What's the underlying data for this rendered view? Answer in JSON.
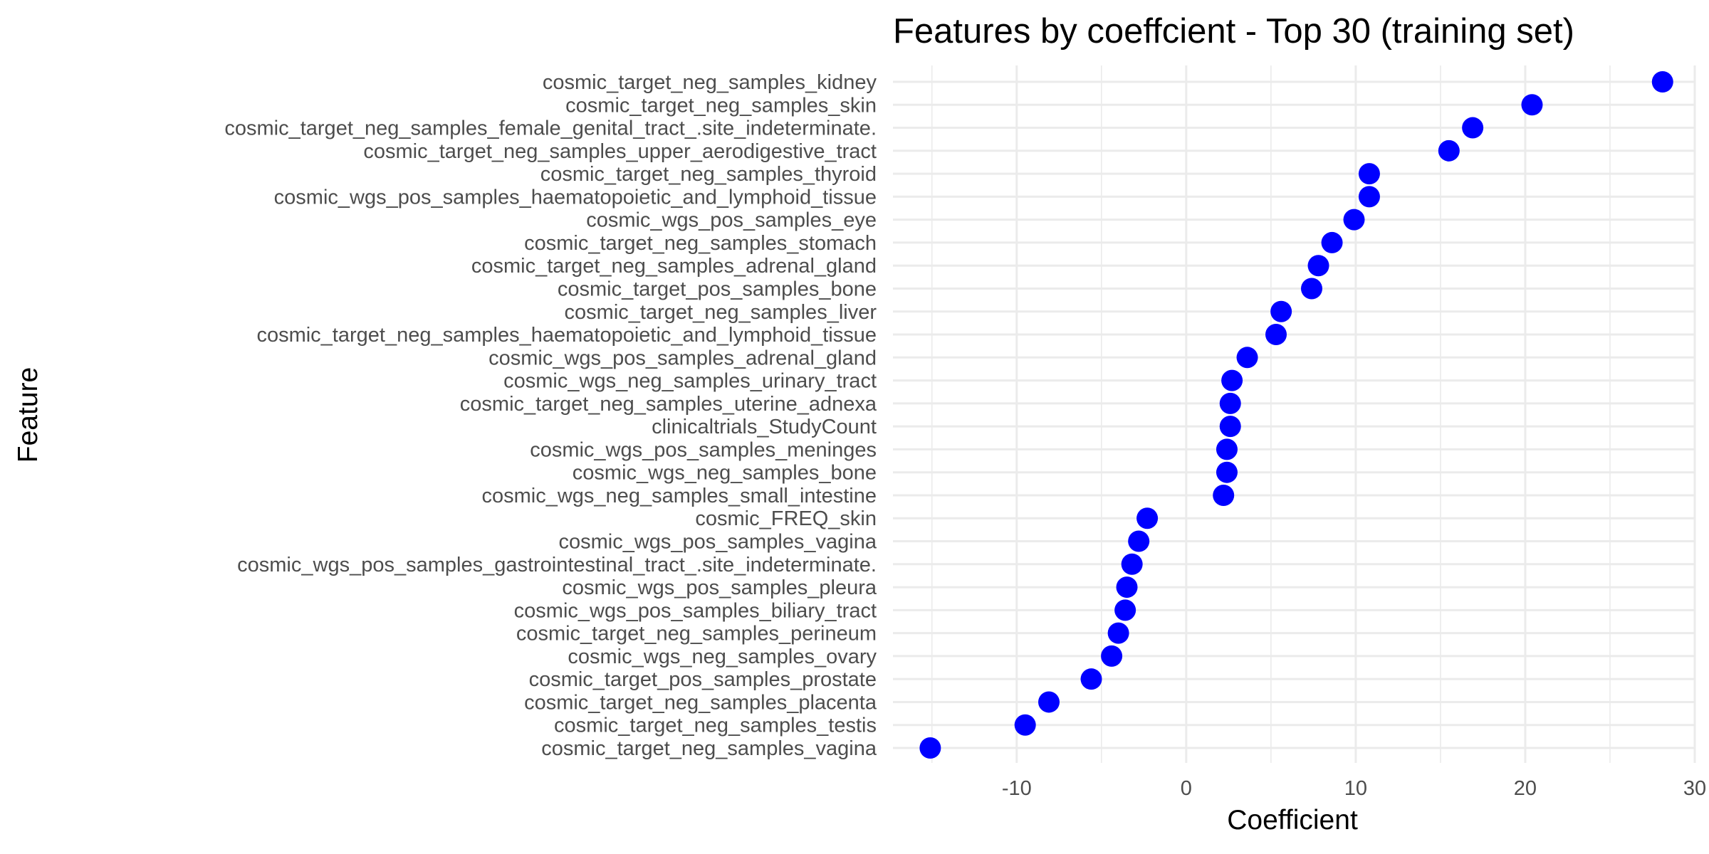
{
  "chart_data": {
    "type": "scatter",
    "title": "Features by coeffcient - Top 30 (training set)",
    "xlabel": "Coefficient",
    "ylabel": "Feature",
    "xlim": [
      -17.3,
      30
    ],
    "xticks": [
      -10,
      0,
      10,
      20,
      30
    ],
    "grid": true,
    "legend": "none",
    "point_color": "#0000ff",
    "points": [
      {
        "feature": "cosmic_target_neg_samples_kidney",
        "value": 28.1
      },
      {
        "feature": "cosmic_target_neg_samples_skin",
        "value": 20.4
      },
      {
        "feature": "cosmic_target_neg_samples_female_genital_tract_.site_indeterminate.",
        "value": 16.9
      },
      {
        "feature": "cosmic_target_neg_samples_upper_aerodigestive_tract",
        "value": 15.5
      },
      {
        "feature": "cosmic_target_neg_samples_thyroid",
        "value": 10.8
      },
      {
        "feature": "cosmic_wgs_pos_samples_haematopoietic_and_lymphoid_tissue",
        "value": 10.8
      },
      {
        "feature": "cosmic_wgs_pos_samples_eye",
        "value": 9.9
      },
      {
        "feature": "cosmic_target_neg_samples_stomach",
        "value": 8.6
      },
      {
        "feature": "cosmic_target_neg_samples_adrenal_gland",
        "value": 7.8
      },
      {
        "feature": "cosmic_target_pos_samples_bone",
        "value": 7.4
      },
      {
        "feature": "cosmic_target_neg_samples_liver",
        "value": 5.6
      },
      {
        "feature": "cosmic_target_neg_samples_haematopoietic_and_lymphoid_tissue",
        "value": 5.3
      },
      {
        "feature": "cosmic_wgs_pos_samples_adrenal_gland",
        "value": 3.6
      },
      {
        "feature": "cosmic_wgs_neg_samples_urinary_tract",
        "value": 2.7
      },
      {
        "feature": "cosmic_target_neg_samples_uterine_adnexa",
        "value": 2.6
      },
      {
        "feature": "clinicaltrials_StudyCount",
        "value": 2.6
      },
      {
        "feature": "cosmic_wgs_pos_samples_meninges",
        "value": 2.4
      },
      {
        "feature": "cosmic_wgs_neg_samples_bone",
        "value": 2.4
      },
      {
        "feature": "cosmic_wgs_neg_samples_small_intestine",
        "value": 2.2
      },
      {
        "feature": "cosmic_FREQ_skin",
        "value": -2.3
      },
      {
        "feature": "cosmic_wgs_pos_samples_vagina",
        "value": -2.8
      },
      {
        "feature": "cosmic_wgs_pos_samples_gastrointestinal_tract_.site_indeterminate.",
        "value": -3.2
      },
      {
        "feature": "cosmic_wgs_pos_samples_pleura",
        "value": -3.5
      },
      {
        "feature": "cosmic_wgs_pos_samples_biliary_tract",
        "value": -3.6
      },
      {
        "feature": "cosmic_target_neg_samples_perineum",
        "value": -4.0
      },
      {
        "feature": "cosmic_wgs_neg_samples_ovary",
        "value": -4.4
      },
      {
        "feature": "cosmic_target_pos_samples_prostate",
        "value": -5.6
      },
      {
        "feature": "cosmic_target_neg_samples_placenta",
        "value": -8.1
      },
      {
        "feature": "cosmic_target_neg_samples_testis",
        "value": -9.5
      },
      {
        "feature": "cosmic_target_neg_samples_vagina",
        "value": -15.1
      }
    ]
  }
}
